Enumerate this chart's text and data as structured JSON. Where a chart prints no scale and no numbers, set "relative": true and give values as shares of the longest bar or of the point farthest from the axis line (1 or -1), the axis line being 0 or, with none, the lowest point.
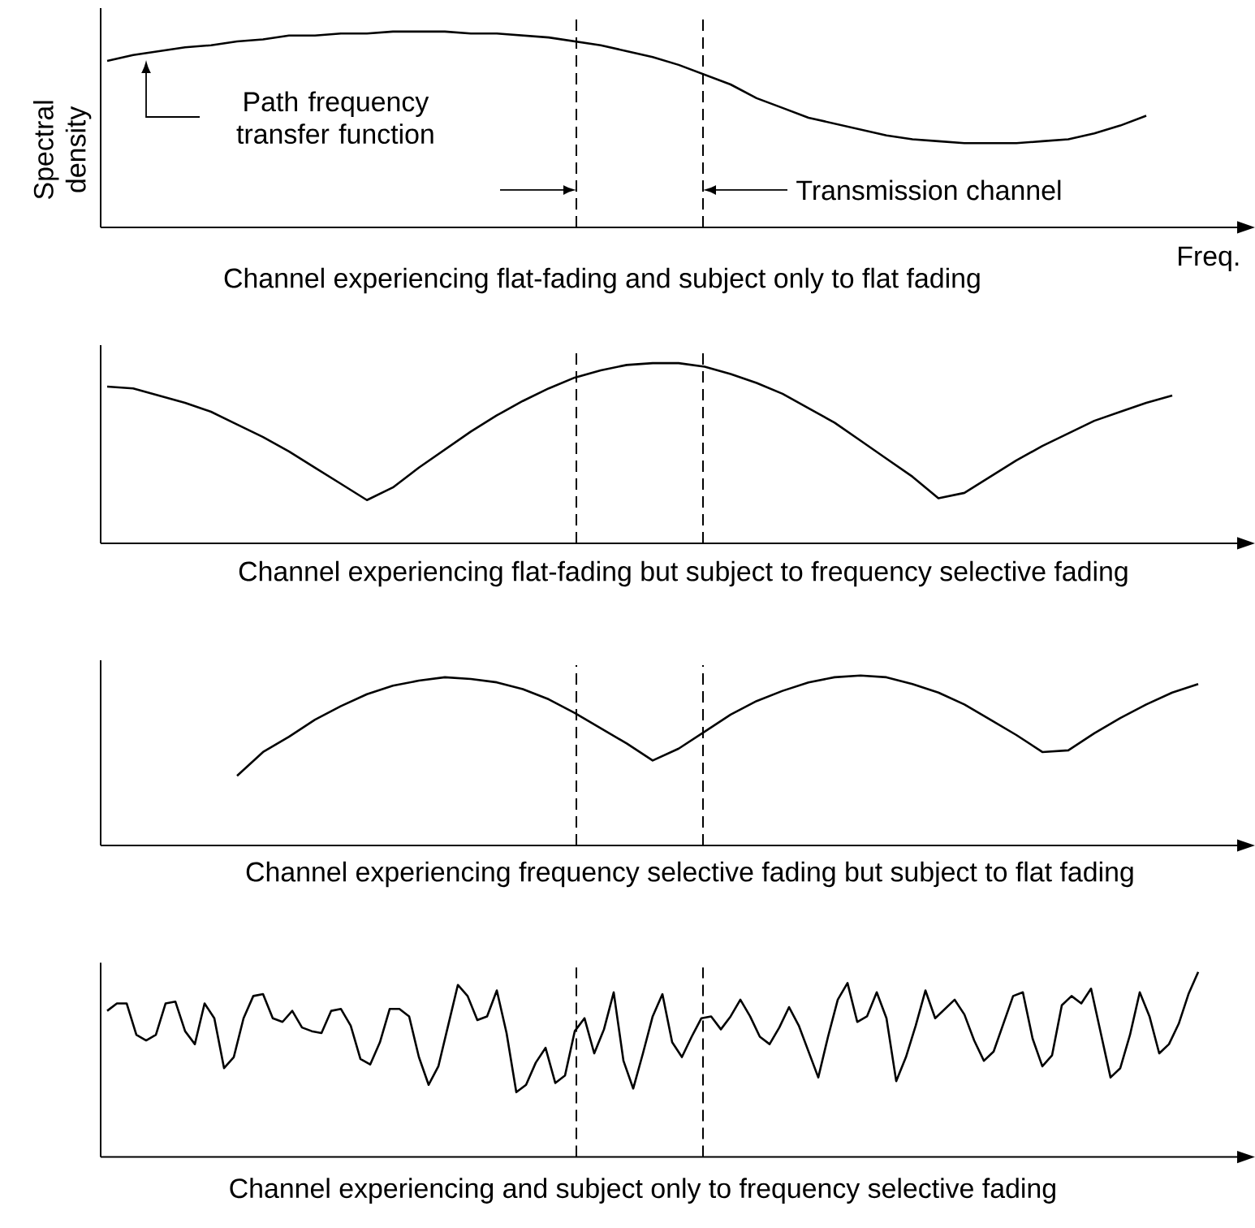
{
  "chart_data": [
    {
      "type": "line",
      "relative": true,
      "title": "Channel experiencing flat-fading and subject only to flat fading",
      "xlabel": "Freq.",
      "ylabel": "Spectral density",
      "categories": [
        null,
        null,
        null,
        null,
        null,
        null,
        null,
        null,
        null,
        null,
        null,
        null,
        null,
        null,
        null,
        null,
        null,
        null,
        null,
        null,
        null,
        null,
        null,
        null,
        null,
        null,
        null,
        null,
        null,
        null,
        null,
        null,
        null,
        null,
        null,
        null,
        null,
        null,
        null,
        null,
        null,
        null,
        null
      ],
      "series": [
        {
          "color": "#000000",
          "values": [
            0.85,
            0.88,
            0.9,
            0.92,
            0.93,
            0.95,
            0.96,
            0.98,
            0.98,
            0.99,
            0.99,
            1,
            1,
            1,
            0.99,
            0.99,
            0.98,
            0.97,
            0.95,
            0.93,
            0.9,
            0.87,
            0.83,
            0.78,
            0.73,
            0.66,
            0.61,
            0.56,
            0.53,
            0.5,
            0.47,
            0.45,
            0.44,
            0.43,
            0.43,
            0.43,
            0.44,
            0.45,
            0.48,
            0.52,
            0.57,
            null,
            null
          ]
        }
      ],
      "annotations": [
        "Path frequency transfer function",
        "Transmission channel"
      ]
    },
    {
      "type": "line",
      "relative": true,
      "title": "Channel experiencing flat-fading but subject to frequency selective fading",
      "categories": [
        null,
        null,
        null,
        null,
        null,
        null,
        null,
        null,
        null,
        null,
        null,
        null,
        null,
        null,
        null,
        null,
        null,
        null,
        null,
        null,
        null,
        null,
        null,
        null,
        null,
        null,
        null,
        null,
        null,
        null,
        null,
        null,
        null,
        null,
        null,
        null,
        null,
        null,
        null,
        null,
        null,
        null,
        null
      ],
      "series": [
        {
          "color": "#000000",
          "values": [
            0.87,
            0.86,
            0.82,
            0.78,
            0.73,
            0.66,
            0.59,
            0.51,
            0.42,
            0.33,
            0.24,
            0.31,
            0.42,
            0.52,
            0.62,
            0.71,
            0.79,
            0.86,
            0.92,
            0.96,
            0.99,
            1,
            1,
            0.98,
            0.94,
            0.89,
            0.83,
            0.75,
            0.67,
            0.57,
            0.47,
            0.37,
            0.25,
            0.28,
            0.37,
            0.46,
            0.54,
            0.61,
            0.68,
            0.73,
            0.78,
            0.82,
            null
          ]
        }
      ]
    },
    {
      "type": "line",
      "relative": true,
      "title": "Channel experiencing frequency selective fading but subject to flat fading",
      "categories": [
        null,
        null,
        null,
        null,
        null,
        null,
        null,
        null,
        null,
        null,
        null,
        null,
        null,
        null,
        null,
        null,
        null,
        null,
        null,
        null,
        null,
        null,
        null,
        null,
        null,
        null,
        null,
        null,
        null,
        null,
        null,
        null,
        null,
        null,
        null,
        null,
        null,
        null,
        null,
        null,
        null,
        null,
        null
      ],
      "series": [
        {
          "color": "#000000",
          "values": [
            null,
            null,
            null,
            null,
            null,
            0.41,
            0.55,
            0.64,
            0.74,
            0.82,
            0.89,
            0.94,
            0.97,
            0.99,
            0.98,
            0.96,
            0.92,
            0.86,
            0.78,
            0.69,
            0.6,
            0.5,
            0.57,
            0.67,
            0.77,
            0.85,
            0.91,
            0.96,
            0.99,
            1,
            0.99,
            0.95,
            0.9,
            0.83,
            0.74,
            0.65,
            0.55,
            0.56,
            0.66,
            0.75,
            0.83,
            0.9,
            0.95
          ]
        }
      ]
    },
    {
      "type": "line",
      "relative": true,
      "title": "Channel experiencing and subject only to frequency selective fading",
      "categories": [
        null,
        null,
        null,
        null,
        null,
        null,
        null,
        null,
        null,
        null,
        null,
        null,
        null,
        null,
        null,
        null,
        null,
        null,
        null,
        null,
        null,
        null,
        null,
        null,
        null,
        null,
        null,
        null,
        null,
        null,
        null,
        null,
        null,
        null,
        null,
        null,
        null,
        null,
        null,
        null,
        null,
        null,
        null,
        null,
        null,
        null,
        null,
        null,
        null,
        null,
        null,
        null,
        null,
        null,
        null,
        null,
        null,
        null,
        null,
        null,
        null,
        null,
        null,
        null,
        null,
        null,
        null,
        null,
        null,
        null,
        null,
        null,
        null,
        null,
        null,
        null,
        null,
        null,
        null,
        null,
        null,
        null,
        null,
        null,
        null,
        null,
        null,
        null,
        null,
        null,
        null,
        null,
        null,
        null,
        null,
        null,
        null,
        null,
        null,
        null,
        null,
        null,
        null,
        null,
        null,
        null,
        null,
        null,
        null,
        null,
        null,
        null,
        null
      ],
      "series": [
        {
          "color": "#000000",
          "values": [
            0.79,
            0.83,
            0.83,
            0.66,
            0.63,
            0.66,
            0.83,
            0.84,
            0.68,
            0.61,
            0.83,
            0.75,
            0.48,
            0.54,
            0.75,
            0.87,
            0.88,
            0.75,
            0.73,
            0.79,
            0.7,
            0.68,
            0.67,
            0.79,
            0.8,
            0.71,
            0.53,
            0.5,
            0.62,
            0.8,
            0.8,
            0.76,
            0.54,
            0.39,
            0.49,
            0.71,
            0.93,
            0.87,
            0.74,
            0.76,
            0.9,
            0.67,
            0.35,
            0.39,
            0.51,
            0.59,
            0.4,
            0.44,
            0.68,
            0.75,
            0.56,
            0.69,
            0.89,
            0.52,
            0.37,
            0.56,
            0.76,
            0.88,
            0.62,
            0.54,
            0.65,
            0.75,
            0.76,
            0.69,
            0.76,
            0.85,
            0.76,
            0.65,
            0.61,
            0.7,
            0.81,
            0.71,
            0.57,
            0.43,
            0.65,
            0.85,
            0.94,
            0.73,
            0.76,
            0.89,
            0.75,
            0.41,
            0.54,
            0.71,
            0.9,
            0.75,
            0.8,
            0.85,
            0.77,
            0.63,
            0.52,
            0.57,
            0.72,
            0.87,
            0.89,
            0.64,
            0.49,
            0.55,
            0.82,
            0.87,
            0.83,
            0.91,
            0.67,
            0.43,
            0.48,
            0.66,
            0.89,
            0.76,
            0.56,
            0.61,
            0.72,
            0.88,
            1
          ]
        }
      ]
    }
  ]
}
